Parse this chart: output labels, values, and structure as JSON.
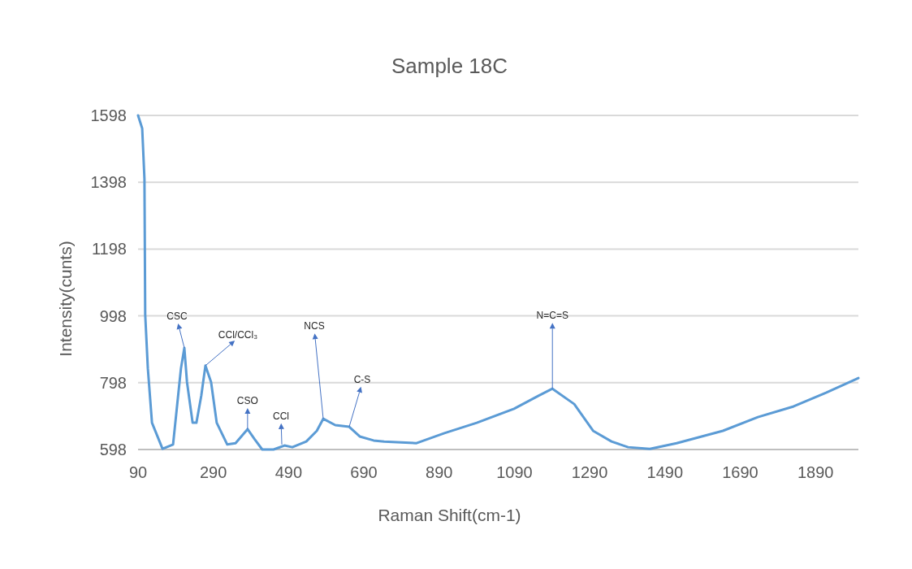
{
  "chart_data": {
    "type": "line",
    "title": "Sample 18C",
    "xlabel": "Raman Shift(cm-1)",
    "ylabel": "Intensity(cunts)",
    "xlim": [
      90,
      2004
    ],
    "xticks": [
      90,
      290,
      490,
      690,
      890,
      1090,
      1290,
      1490,
      1690,
      1890
    ],
    "ylim": [
      598,
      1598
    ],
    "yticks": [
      598,
      798,
      998,
      1198,
      1398,
      1598
    ],
    "grid": "y",
    "x": [
      90,
      101,
      107,
      109,
      116,
      127,
      155,
      183,
      204,
      213,
      220,
      235,
      245,
      258,
      269,
      284,
      299,
      327,
      349,
      381,
      399,
      420,
      450,
      479,
      500,
      537,
      565,
      582,
      614,
      651,
      679,
      716,
      744,
      830,
      904,
      990,
      1089,
      1154,
      1191,
      1249,
      1299,
      1348,
      1392,
      1450,
      1521,
      1644,
      1737,
      1832,
      1918,
      2004
    ],
    "series": [
      {
        "color": "#5b9bd5",
        "values": [
          1598,
          1559,
          1408,
          1002,
          841,
          678,
          600,
          613,
          841,
          902,
          800,
          678,
          678,
          759,
          849,
          800,
          678,
          613,
          617,
          659,
          630,
          598,
          598,
          610,
          605,
          622,
          654,
          690,
          671,
          666,
          637,
          625,
          622,
          617,
          647,
          678,
          720,
          759,
          780,
          734,
          654,
          622,
          605,
          600,
          617,
          654,
          695,
          727,
          768,
          812
        ]
      }
    ],
    "annotations": [
      {
        "text": "CSC",
        "x": 213,
        "y": 902
      },
      {
        "text": "CCl/CCl₃",
        "x": 269,
        "y": 849
      },
      {
        "text": "CSO",
        "x": 381,
        "y": 659
      },
      {
        "text": "CCl",
        "x": 472,
        "y": 613
      },
      {
        "text": "NCS",
        "x": 582,
        "y": 690
      },
      {
        "text": "C-S",
        "x": 651,
        "y": 666
      },
      {
        "text": "N=C=S",
        "x": 1191,
        "y": 780
      }
    ]
  }
}
